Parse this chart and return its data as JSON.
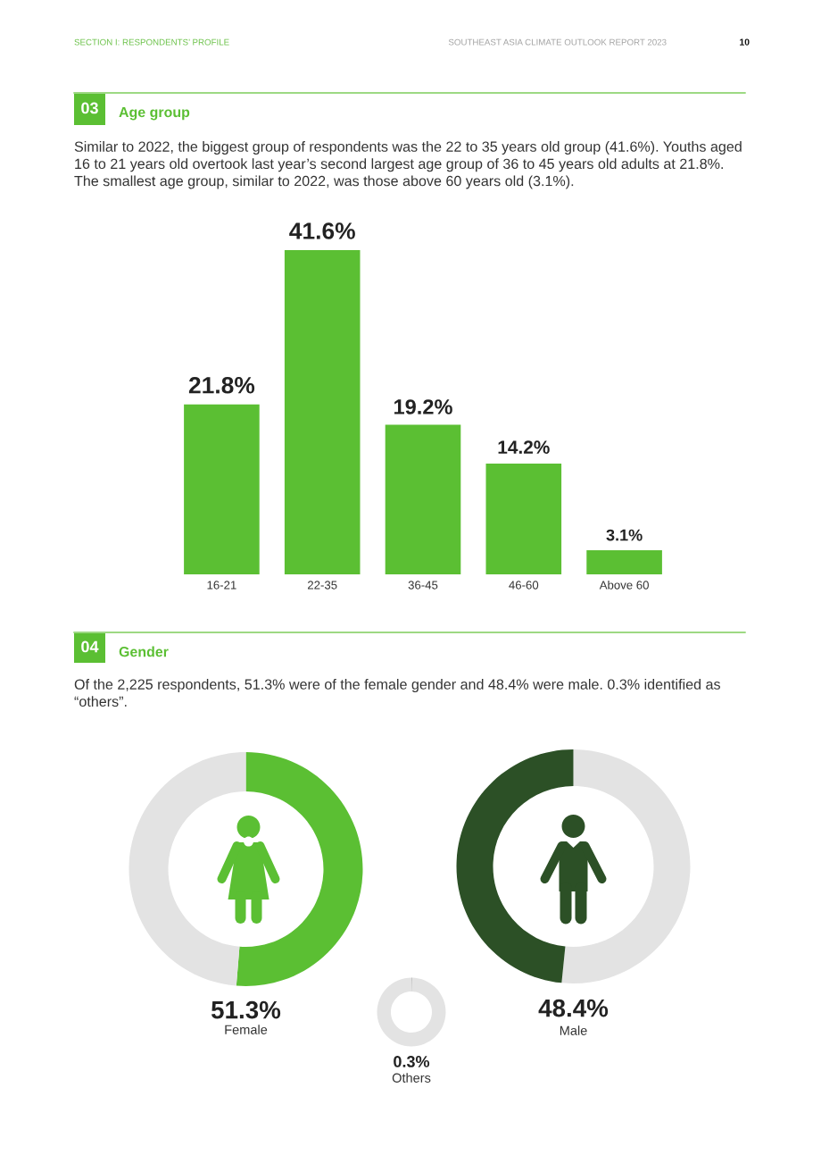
{
  "chart_data": [
    {
      "type": "bar",
      "title": "Age group",
      "subtitle": "Similar to 2022, the biggest group of respondents was the 22 to 35 years old group (41.6%). Youths aged 16 to 21 years old overtook last year’s second largest age group of 36 to 45 years old adults at 21.8%. The smallest age group, similar to 2022, was those above 60 years old (3.1%).",
      "annotations": [
        "SECTION I: RESPONDENTS’ PROFILE",
        "SOUTHEAST ASIA CLIMATE OUTLOOK REPORT 2023",
        "10",
        "03"
      ],
      "categories": [
        "16-21",
        "22-35",
        "36-45",
        "46-60",
        "Above 60"
      ],
      "values": [
        21.8,
        41.6,
        19.2,
        14.2,
        3.1
      ],
      "color": "#5bbf33",
      "value_labels": [
        "21.8%",
        "41.6%",
        "19.2%",
        "14.2%",
        "3.1%"
      ],
      "tick_labels": "x"
    },
    {
      "type": "donut",
      "title": "Gender",
      "subtitle": "Of the 2,225 respondents, 51.3% were of the female gender and 48.4% were male. 0.3% identified as “others”.",
      "annotations": [
        "04"
      ],
      "categories": [
        "Female",
        null
      ],
      "values": [
        51.3,
        48.7
      ],
      "colors": [
        "#5bbf33",
        "#e3e3e3"
      ],
      "value_labels": [
        "51.3%",
        null
      ]
    },
    {
      "type": "donut",
      "categories": [
        null,
        "Male"
      ],
      "values": [
        51.6,
        48.4
      ],
      "colors": [
        "#e3e3e3",
        "#2c5026"
      ],
      "value_labels": [
        null,
        "48.4%"
      ]
    },
    {
      "type": "donut",
      "title": "Others",
      "annotations": [
        "0.3%"
      ],
      "categories": [
        null,
        null
      ],
      "values": [
        0.3,
        99.7
      ],
      "colors": [
        "#9a9a9a",
        "#e3e3e3"
      ]
    }
  ]
}
